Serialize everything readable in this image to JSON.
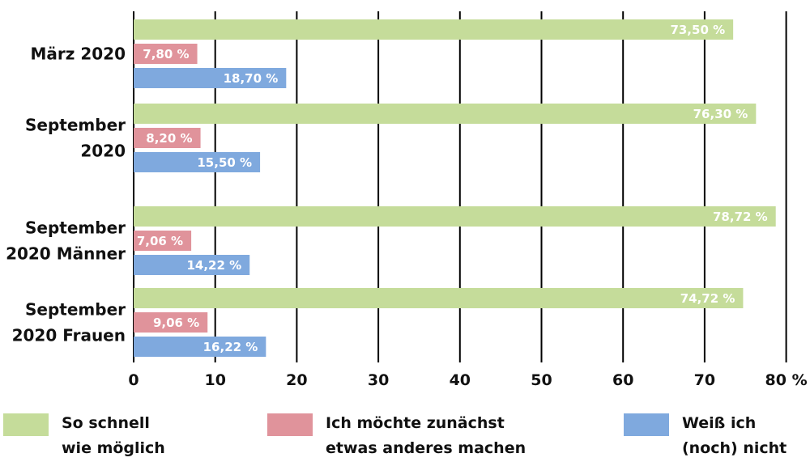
{
  "chart_data": {
    "type": "bar",
    "orientation": "horizontal",
    "categories": [
      "März 2020",
      "September 2020",
      "September 2020 Männer",
      "September 2020 Frauen"
    ],
    "category_lines": [
      [
        "März 2020"
      ],
      [
        "September",
        "2020"
      ],
      [
        "September",
        "2020 Männer"
      ],
      [
        "September",
        "2020 Frauen"
      ]
    ],
    "series": [
      {
        "name": "So schnell wie möglich",
        "color": "#c5dc9a",
        "values": [
          73.5,
          76.3,
          78.72,
          74.72
        ],
        "labels": [
          "73,50 %",
          "76,30 %",
          "78,72 %",
          "74,72 %"
        ]
      },
      {
        "name": "Ich möchte zunächst etwas anderes machen",
        "color": "#e0939b",
        "values": [
          7.8,
          8.2,
          7.06,
          9.06
        ],
        "labels": [
          "7,80 %",
          "8,20 %",
          "7,06 %",
          "9,06 %"
        ]
      },
      {
        "name": "Weiß ich (noch) nicht",
        "color": "#7fa9de",
        "values": [
          18.7,
          15.5,
          14.22,
          16.22
        ],
        "labels": [
          "18,70 %",
          "15,50 %",
          "14,22 %",
          "16,22 %"
        ]
      }
    ],
    "xlim": [
      0,
      80
    ],
    "xticks": [
      0,
      10,
      20,
      30,
      40,
      50,
      60,
      70,
      80
    ],
    "xtick_labels": [
      "0",
      "10",
      "20",
      "30",
      "40",
      "50",
      "60",
      "70",
      "80 %"
    ],
    "grid": true,
    "legend_position": "bottom"
  },
  "legend": [
    {
      "label": "So schnell\nwie möglich",
      "color": "#c5dc9a"
    },
    {
      "label": "Ich möchte zunächst\netwas anderes machen",
      "color": "#e0939b"
    },
    {
      "label": "Weiß ich\n(noch) nicht",
      "color": "#7fa9de"
    }
  ]
}
